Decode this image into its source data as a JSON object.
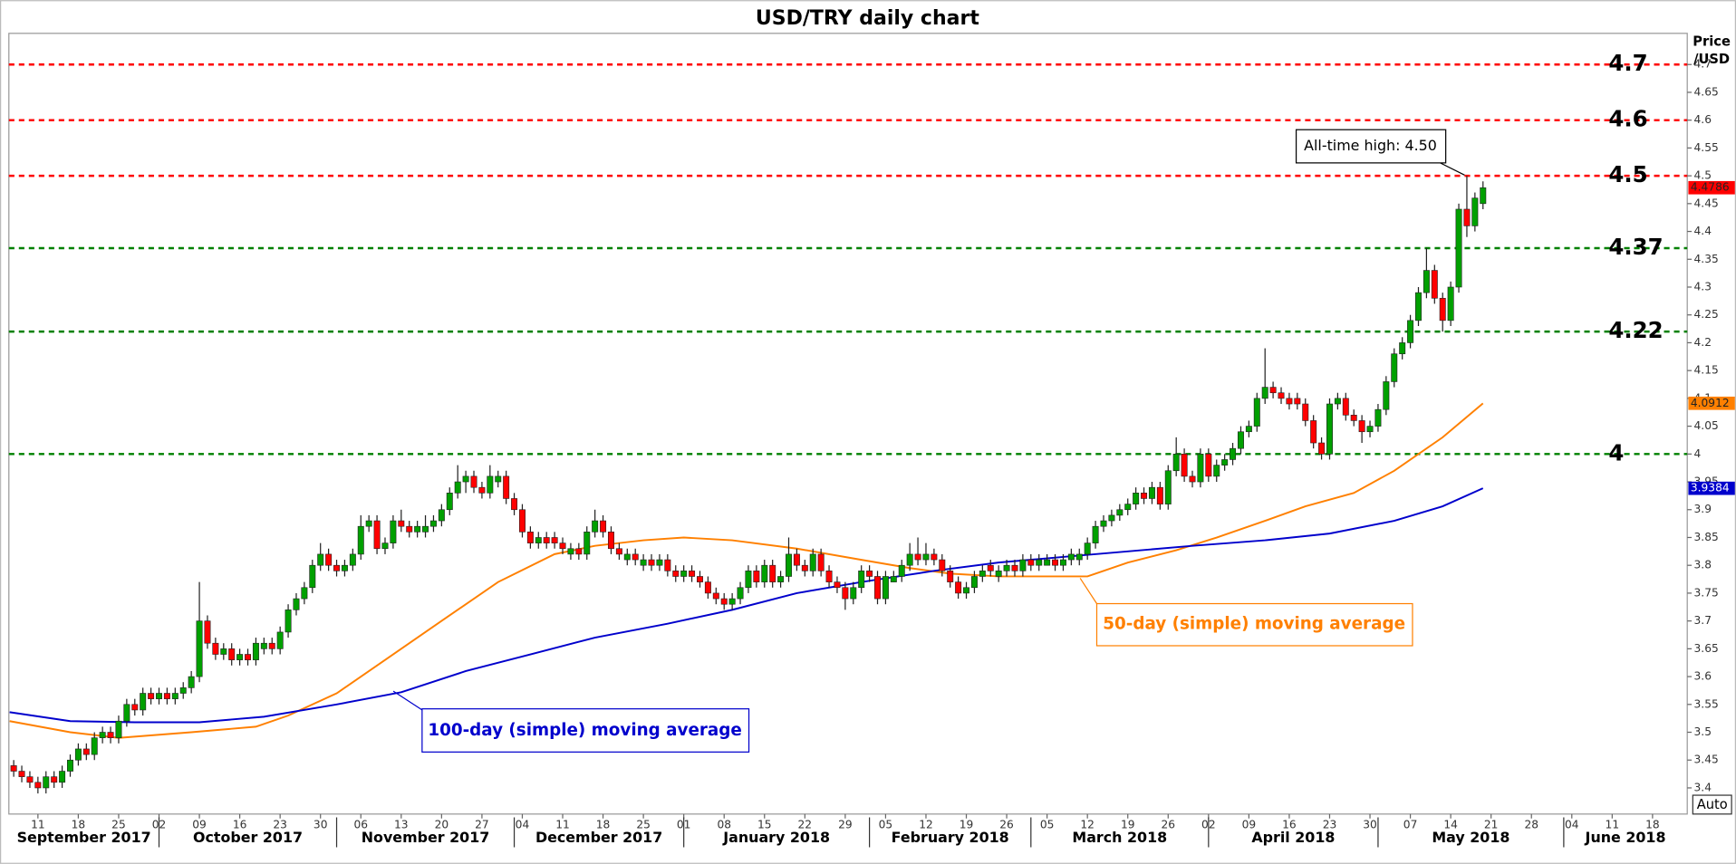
{
  "chart_data": {
    "type": "candlestick",
    "title": "USD/TRY daily chart",
    "ylabel": [
      "Price",
      "/USD"
    ],
    "button": "Auto",
    "up_color": "#00a000",
    "down_color": "#ff0000",
    "xlim": [
      -0.6,
      207.3
    ],
    "ylim": [
      3.353,
      4.756
    ],
    "yticks": [
      3.4,
      3.45,
      3.5,
      3.55,
      3.6,
      3.65,
      3.7,
      3.75,
      3.8,
      3.85,
      3.9,
      3.95,
      4,
      4.05,
      4.1,
      4.15,
      4.2,
      4.25,
      4.3,
      4.35,
      4.4,
      4.45,
      4.5,
      4.55,
      4.6,
      4.65,
      4.7
    ],
    "xticks": [
      {
        "value": 3,
        "label": "11"
      },
      {
        "value": 8,
        "label": "18"
      },
      {
        "value": 13,
        "label": "25"
      },
      {
        "value": 18,
        "label": "02"
      },
      {
        "value": 23,
        "label": "09"
      },
      {
        "value": 28,
        "label": "16"
      },
      {
        "value": 33,
        "label": "23"
      },
      {
        "value": 38,
        "label": "30"
      },
      {
        "value": 43,
        "label": "06"
      },
      {
        "value": 48,
        "label": "13"
      },
      {
        "value": 53,
        "label": "20"
      },
      {
        "value": 58,
        "label": "27"
      },
      {
        "value": 63,
        "label": "04"
      },
      {
        "value": 68,
        "label": "11"
      },
      {
        "value": 73,
        "label": "18"
      },
      {
        "value": 78,
        "label": "25"
      },
      {
        "value": 83,
        "label": "01"
      },
      {
        "value": 88,
        "label": "08"
      },
      {
        "value": 93,
        "label": "15"
      },
      {
        "value": 98,
        "label": "22"
      },
      {
        "value": 103,
        "label": "29"
      },
      {
        "value": 108,
        "label": "05"
      },
      {
        "value": 113,
        "label": "12"
      },
      {
        "value": 118,
        "label": "19"
      },
      {
        "value": 123,
        "label": "26"
      },
      {
        "value": 128,
        "label": "05"
      },
      {
        "value": 133,
        "label": "12"
      },
      {
        "value": 138,
        "label": "19"
      },
      {
        "value": 143,
        "label": "26"
      },
      {
        "value": 148,
        "label": "02"
      },
      {
        "value": 153,
        "label": "09"
      },
      {
        "value": 158,
        "label": "16"
      },
      {
        "value": 163,
        "label": "23"
      },
      {
        "value": 168,
        "label": "30"
      },
      {
        "value": 173,
        "label": "07"
      },
      {
        "value": 178,
        "label": "14"
      },
      {
        "value": 183,
        "label": "21"
      },
      {
        "value": 188,
        "label": "28"
      },
      {
        "value": 193,
        "label": "04"
      },
      {
        "value": 198,
        "label": "11"
      },
      {
        "value": 203,
        "label": "18"
      }
    ],
    "months": [
      {
        "value": -3,
        "label": "September 2017"
      },
      {
        "value": 18,
        "label": "October 2017"
      },
      {
        "value": 40,
        "label": "November 2017"
      },
      {
        "value": 62,
        "label": "December 2017"
      },
      {
        "value": 83,
        "label": "January 2018"
      },
      {
        "value": 106,
        "label": "February 2018"
      },
      {
        "value": 126,
        "label": "March 2018"
      },
      {
        "value": 148,
        "label": "April 2018"
      },
      {
        "value": 169,
        "label": "May 2018"
      },
      {
        "value": 192,
        "label": "June 2018"
      }
    ],
    "levels": [
      {
        "value": 4.7,
        "color": "#ff0000"
      },
      {
        "value": 4.6,
        "color": "#ff0000"
      },
      {
        "value": 4.5,
        "color": "#ff0000"
      },
      {
        "value": 4.37,
        "color": "#008000"
      },
      {
        "value": 4.22,
        "color": "#008000"
      },
      {
        "value": 4,
        "color": "#008000"
      }
    ],
    "annotation": "All-time high: 4.50",
    "candles": [
      [
        3.44,
        3.45,
        3.42,
        3.43
      ],
      [
        3.43,
        3.44,
        3.41,
        3.42
      ],
      [
        3.42,
        3.43,
        3.4,
        3.41
      ],
      [
        3.41,
        3.42,
        3.39,
        3.4
      ],
      [
        3.4,
        3.43,
        3.39,
        3.42
      ],
      [
        3.42,
        3.43,
        3.4,
        3.41
      ],
      [
        3.41,
        3.44,
        3.4,
        3.43
      ],
      [
        3.43,
        3.46,
        3.42,
        3.45
      ],
      [
        3.45,
        3.48,
        3.44,
        3.47
      ],
      [
        3.47,
        3.48,
        3.45,
        3.46
      ],
      [
        3.46,
        3.5,
        3.45,
        3.49
      ],
      [
        3.49,
        3.51,
        3.48,
        3.5
      ],
      [
        3.5,
        3.51,
        3.48,
        3.49
      ],
      [
        3.49,
        3.53,
        3.48,
        3.52
      ],
      [
        3.52,
        3.56,
        3.51,
        3.55
      ],
      [
        3.55,
        3.56,
        3.53,
        3.54
      ],
      [
        3.54,
        3.58,
        3.53,
        3.57
      ],
      [
        3.57,
        3.58,
        3.55,
        3.56
      ],
      [
        3.56,
        3.58,
        3.55,
        3.57
      ],
      [
        3.57,
        3.58,
        3.55,
        3.56
      ],
      [
        3.56,
        3.58,
        3.55,
        3.57
      ],
      [
        3.57,
        3.59,
        3.56,
        3.58
      ],
      [
        3.58,
        3.61,
        3.57,
        3.6
      ],
      [
        3.6,
        3.77,
        3.59,
        3.7
      ],
      [
        3.7,
        3.71,
        3.65,
        3.66
      ],
      [
        3.66,
        3.67,
        3.63,
        3.64
      ],
      [
        3.64,
        3.66,
        3.63,
        3.65
      ],
      [
        3.65,
        3.66,
        3.62,
        3.63
      ],
      [
        3.63,
        3.65,
        3.62,
        3.64
      ],
      [
        3.64,
        3.65,
        3.62,
        3.63
      ],
      [
        3.63,
        3.67,
        3.62,
        3.66
      ],
      [
        3.65,
        3.67,
        3.64,
        3.66
      ],
      [
        3.66,
        3.67,
        3.64,
        3.65
      ],
      [
        3.65,
        3.69,
        3.64,
        3.68
      ],
      [
        3.68,
        3.73,
        3.67,
        3.72
      ],
      [
        3.72,
        3.75,
        3.71,
        3.74
      ],
      [
        3.74,
        3.77,
        3.73,
        3.76
      ],
      [
        3.76,
        3.81,
        3.75,
        3.8
      ],
      [
        3.8,
        3.84,
        3.79,
        3.82
      ],
      [
        3.82,
        3.83,
        3.79,
        3.8
      ],
      [
        3.8,
        3.81,
        3.78,
        3.79
      ],
      [
        3.79,
        3.81,
        3.78,
        3.8
      ],
      [
        3.8,
        3.83,
        3.79,
        3.82
      ],
      [
        3.82,
        3.89,
        3.81,
        3.87
      ],
      [
        3.87,
        3.89,
        3.86,
        3.88
      ],
      [
        3.88,
        3.89,
        3.82,
        3.83
      ],
      [
        3.83,
        3.85,
        3.82,
        3.84
      ],
      [
        3.84,
        3.89,
        3.83,
        3.88
      ],
      [
        3.88,
        3.9,
        3.86,
        3.87
      ],
      [
        3.87,
        3.88,
        3.85,
        3.86
      ],
      [
        3.86,
        3.88,
        3.85,
        3.87
      ],
      [
        3.86,
        3.89,
        3.85,
        3.87
      ],
      [
        3.87,
        3.89,
        3.86,
        3.88
      ],
      [
        3.88,
        3.91,
        3.87,
        3.9
      ],
      [
        3.9,
        3.94,
        3.89,
        3.93
      ],
      [
        3.93,
        3.98,
        3.92,
        3.95
      ],
      [
        3.95,
        3.97,
        3.93,
        3.96
      ],
      [
        3.96,
        3.97,
        3.93,
        3.94
      ],
      [
        3.94,
        3.95,
        3.92,
        3.93
      ],
      [
        3.93,
        3.98,
        3.92,
        3.96
      ],
      [
        3.95,
        3.97,
        3.94,
        3.96
      ],
      [
        3.96,
        3.97,
        3.91,
        3.92
      ],
      [
        3.92,
        3.93,
        3.89,
        3.9
      ],
      [
        3.9,
        3.91,
        3.85,
        3.86
      ],
      [
        3.86,
        3.87,
        3.83,
        3.84
      ],
      [
        3.84,
        3.86,
        3.83,
        3.85
      ],
      [
        3.85,
        3.86,
        3.83,
        3.84
      ],
      [
        3.85,
        3.86,
        3.83,
        3.84
      ],
      [
        3.84,
        3.85,
        3.82,
        3.83
      ],
      [
        3.82,
        3.84,
        3.81,
        3.83
      ],
      [
        3.83,
        3.84,
        3.81,
        3.82
      ],
      [
        3.82,
        3.87,
        3.81,
        3.86
      ],
      [
        3.86,
        3.9,
        3.85,
        3.88
      ],
      [
        3.88,
        3.89,
        3.85,
        3.86
      ],
      [
        3.86,
        3.87,
        3.82,
        3.83
      ],
      [
        3.83,
        3.84,
        3.81,
        3.82
      ],
      [
        3.81,
        3.83,
        3.8,
        3.82
      ],
      [
        3.82,
        3.83,
        3.8,
        3.81
      ],
      [
        3.8,
        3.82,
        3.79,
        3.81
      ],
      [
        3.81,
        3.82,
        3.79,
        3.8
      ],
      [
        3.8,
        3.82,
        3.79,
        3.81
      ],
      [
        3.81,
        3.82,
        3.78,
        3.79
      ],
      [
        3.79,
        3.8,
        3.77,
        3.78
      ],
      [
        3.78,
        3.8,
        3.77,
        3.79
      ],
      [
        3.79,
        3.8,
        3.77,
        3.78
      ],
      [
        3.78,
        3.79,
        3.76,
        3.77
      ],
      [
        3.77,
        3.78,
        3.74,
        3.75
      ],
      [
        3.75,
        3.76,
        3.73,
        3.74
      ],
      [
        3.74,
        3.75,
        3.72,
        3.73
      ],
      [
        3.73,
        3.75,
        3.72,
        3.74
      ],
      [
        3.74,
        3.77,
        3.73,
        3.76
      ],
      [
        3.76,
        3.8,
        3.75,
        3.79
      ],
      [
        3.79,
        3.8,
        3.76,
        3.77
      ],
      [
        3.77,
        3.81,
        3.76,
        3.8
      ],
      [
        3.8,
        3.81,
        3.76,
        3.77
      ],
      [
        3.77,
        3.79,
        3.76,
        3.78
      ],
      [
        3.78,
        3.85,
        3.77,
        3.82
      ],
      [
        3.82,
        3.83,
        3.79,
        3.8
      ],
      [
        3.8,
        3.81,
        3.78,
        3.79
      ],
      [
        3.79,
        3.83,
        3.78,
        3.82
      ],
      [
        3.82,
        3.83,
        3.78,
        3.79
      ],
      [
        3.79,
        3.8,
        3.76,
        3.77
      ],
      [
        3.77,
        3.78,
        3.75,
        3.76
      ],
      [
        3.76,
        3.77,
        3.72,
        3.74
      ],
      [
        3.74,
        3.77,
        3.73,
        3.76
      ],
      [
        3.76,
        3.8,
        3.75,
        3.79
      ],
      [
        3.79,
        3.8,
        3.77,
        3.78
      ],
      [
        3.78,
        3.79,
        3.73,
        3.74
      ],
      [
        3.74,
        3.79,
        3.73,
        3.78
      ],
      [
        3.77,
        3.79,
        3.77,
        3.78
      ],
      [
        3.78,
        3.81,
        3.77,
        3.8
      ],
      [
        3.8,
        3.84,
        3.79,
        3.82
      ],
      [
        3.82,
        3.85,
        3.8,
        3.81
      ],
      [
        3.81,
        3.84,
        3.8,
        3.82
      ],
      [
        3.82,
        3.83,
        3.8,
        3.81
      ],
      [
        3.81,
        3.82,
        3.78,
        3.79
      ],
      [
        3.79,
        3.8,
        3.76,
        3.77
      ],
      [
        3.77,
        3.78,
        3.74,
        3.75
      ],
      [
        3.75,
        3.77,
        3.74,
        3.76
      ],
      [
        3.76,
        3.79,
        3.75,
        3.78
      ],
      [
        3.78,
        3.8,
        3.77,
        3.79
      ],
      [
        3.8,
        3.81,
        3.78,
        3.79
      ],
      [
        3.78,
        3.8,
        3.77,
        3.79
      ],
      [
        3.79,
        3.81,
        3.78,
        3.8
      ],
      [
        3.8,
        3.81,
        3.78,
        3.79
      ],
      [
        3.79,
        3.82,
        3.78,
        3.81
      ],
      [
        3.81,
        3.82,
        3.79,
        3.8
      ],
      [
        3.8,
        3.82,
        3.79,
        3.81
      ],
      [
        3.8,
        3.82,
        3.8,
        3.81
      ],
      [
        3.81,
        3.82,
        3.79,
        3.8
      ],
      [
        3.8,
        3.82,
        3.79,
        3.81
      ],
      [
        3.81,
        3.83,
        3.8,
        3.82
      ],
      [
        3.81,
        3.83,
        3.8,
        3.82
      ],
      [
        3.82,
        3.85,
        3.81,
        3.84
      ],
      [
        3.84,
        3.88,
        3.83,
        3.87
      ],
      [
        3.87,
        3.89,
        3.86,
        3.88
      ],
      [
        3.88,
        3.9,
        3.87,
        3.89
      ],
      [
        3.89,
        3.91,
        3.88,
        3.9
      ],
      [
        3.9,
        3.92,
        3.89,
        3.91
      ],
      [
        3.91,
        3.94,
        3.9,
        3.93
      ],
      [
        3.93,
        3.94,
        3.91,
        3.92
      ],
      [
        3.92,
        3.95,
        3.91,
        3.94
      ],
      [
        3.94,
        3.95,
        3.9,
        3.91
      ],
      [
        3.91,
        3.98,
        3.9,
        3.97
      ],
      [
        3.97,
        4.03,
        3.96,
        4.0
      ],
      [
        4.0,
        4.01,
        3.95,
        3.96
      ],
      [
        3.96,
        3.97,
        3.94,
        3.95
      ],
      [
        3.95,
        4.01,
        3.94,
        4.0
      ],
      [
        4.0,
        4.01,
        3.95,
        3.96
      ],
      [
        3.96,
        3.99,
        3.95,
        3.98
      ],
      [
        3.98,
        4.0,
        3.97,
        3.99
      ],
      [
        3.99,
        4.02,
        3.98,
        4.01
      ],
      [
        4.01,
        4.05,
        4.0,
        4.04
      ],
      [
        4.04,
        4.06,
        4.03,
        4.05
      ],
      [
        4.05,
        4.11,
        4.04,
        4.1
      ],
      [
        4.1,
        4.19,
        4.09,
        4.12
      ],
      [
        4.12,
        4.13,
        4.1,
        4.11
      ],
      [
        4.11,
        4.12,
        4.09,
        4.1
      ],
      [
        4.1,
        4.11,
        4.08,
        4.09
      ],
      [
        4.1,
        4.11,
        4.08,
        4.09
      ],
      [
        4.09,
        4.1,
        4.05,
        4.06
      ],
      [
        4.06,
        4.07,
        4.01,
        4.02
      ],
      [
        4.02,
        4.03,
        3.99,
        4.0
      ],
      [
        4.0,
        4.1,
        3.99,
        4.09
      ],
      [
        4.09,
        4.11,
        4.08,
        4.1
      ],
      [
        4.1,
        4.11,
        4.06,
        4.07
      ],
      [
        4.07,
        4.08,
        4.05,
        4.06
      ],
      [
        4.06,
        4.07,
        4.02,
        4.04
      ],
      [
        4.04,
        4.06,
        4.03,
        4.05
      ],
      [
        4.05,
        4.09,
        4.04,
        4.08
      ],
      [
        4.08,
        4.14,
        4.07,
        4.13
      ],
      [
        4.13,
        4.19,
        4.12,
        4.18
      ],
      [
        4.18,
        4.21,
        4.17,
        4.2
      ],
      [
        4.2,
        4.25,
        4.19,
        4.24
      ],
      [
        4.24,
        4.3,
        4.23,
        4.29
      ],
      [
        4.29,
        4.37,
        4.28,
        4.33
      ],
      [
        4.33,
        4.34,
        4.27,
        4.28
      ],
      [
        4.28,
        4.29,
        4.22,
        4.24
      ],
      [
        4.24,
        4.31,
        4.23,
        4.3
      ],
      [
        4.3,
        4.45,
        4.29,
        4.44
      ],
      [
        4.44,
        4.5,
        4.39,
        4.41
      ],
      [
        4.41,
        4.47,
        4.4,
        4.46
      ],
      [
        4.45,
        4.49,
        4.44,
        4.4786
      ]
    ],
    "series": [
      {
        "name": "50-day (simple) moving average",
        "color": "#ff8000",
        "x": [
          -0.5,
          7,
          13,
          22,
          30,
          34,
          40,
          46,
          53,
          60,
          67,
          72,
          78,
          83,
          89,
          97,
          105,
          111,
          116,
          122,
          127,
          133,
          138,
          144,
          149,
          155,
          160,
          166,
          171,
          177,
          182
        ],
        "values": [
          3.52,
          3.5,
          3.49,
          3.5,
          3.51,
          3.53,
          3.57,
          3.63,
          3.7,
          3.77,
          3.82,
          3.835,
          3.845,
          3.85,
          3.845,
          3.83,
          3.81,
          3.795,
          3.785,
          3.78,
          3.78,
          3.78,
          3.805,
          3.827,
          3.85,
          3.88,
          3.906,
          3.93,
          3.97,
          4.03,
          4.0912
        ]
      },
      {
        "name": "100-day (simple) moving average",
        "color": "#0000cc",
        "x": [
          -0.5,
          7,
          15,
          23,
          31,
          40,
          48,
          56,
          64,
          72,
          81,
          89,
          97,
          105,
          114,
          122,
          130,
          138,
          146,
          155,
          163,
          171,
          177,
          182
        ],
        "values": [
          3.536,
          3.52,
          3.518,
          3.518,
          3.528,
          3.55,
          3.572,
          3.61,
          3.64,
          3.67,
          3.695,
          3.72,
          3.75,
          3.77,
          3.79,
          3.805,
          3.815,
          3.825,
          3.835,
          3.845,
          3.857,
          3.88,
          3.906,
          3.9384
        ]
      }
    ]
  }
}
